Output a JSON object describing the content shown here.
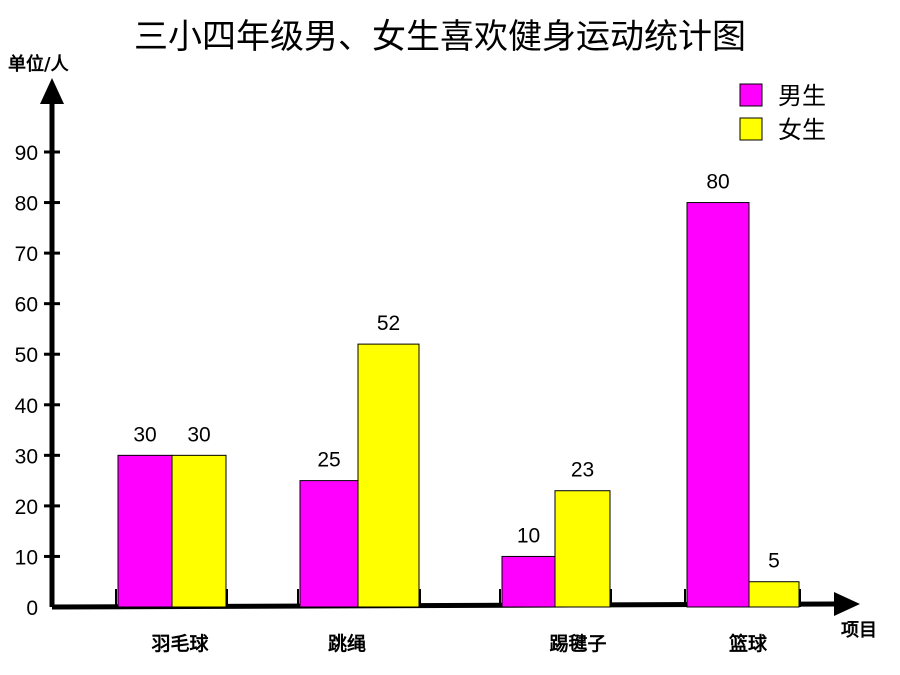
{
  "chart_data": {
    "type": "bar",
    "title": "三小四年级男、女生喜欢健身运动统计图",
    "ylabel": "单位/人",
    "xlabel": "项目",
    "categories": [
      "羽毛球",
      "跳绳",
      "踢毽子",
      "篮球"
    ],
    "series": [
      {
        "name": "男生",
        "values": [
          30,
          25,
          10,
          80
        ],
        "color": "#ff00ff"
      },
      {
        "name": "女生",
        "values": [
          30,
          52,
          23,
          5
        ],
        "color": "#ffff00"
      }
    ],
    "ylim": [
      0,
      90
    ],
    "yticks": [
      0,
      10,
      20,
      30,
      40,
      50,
      60,
      70,
      80,
      90
    ],
    "grid": false,
    "legend": "top-right"
  }
}
